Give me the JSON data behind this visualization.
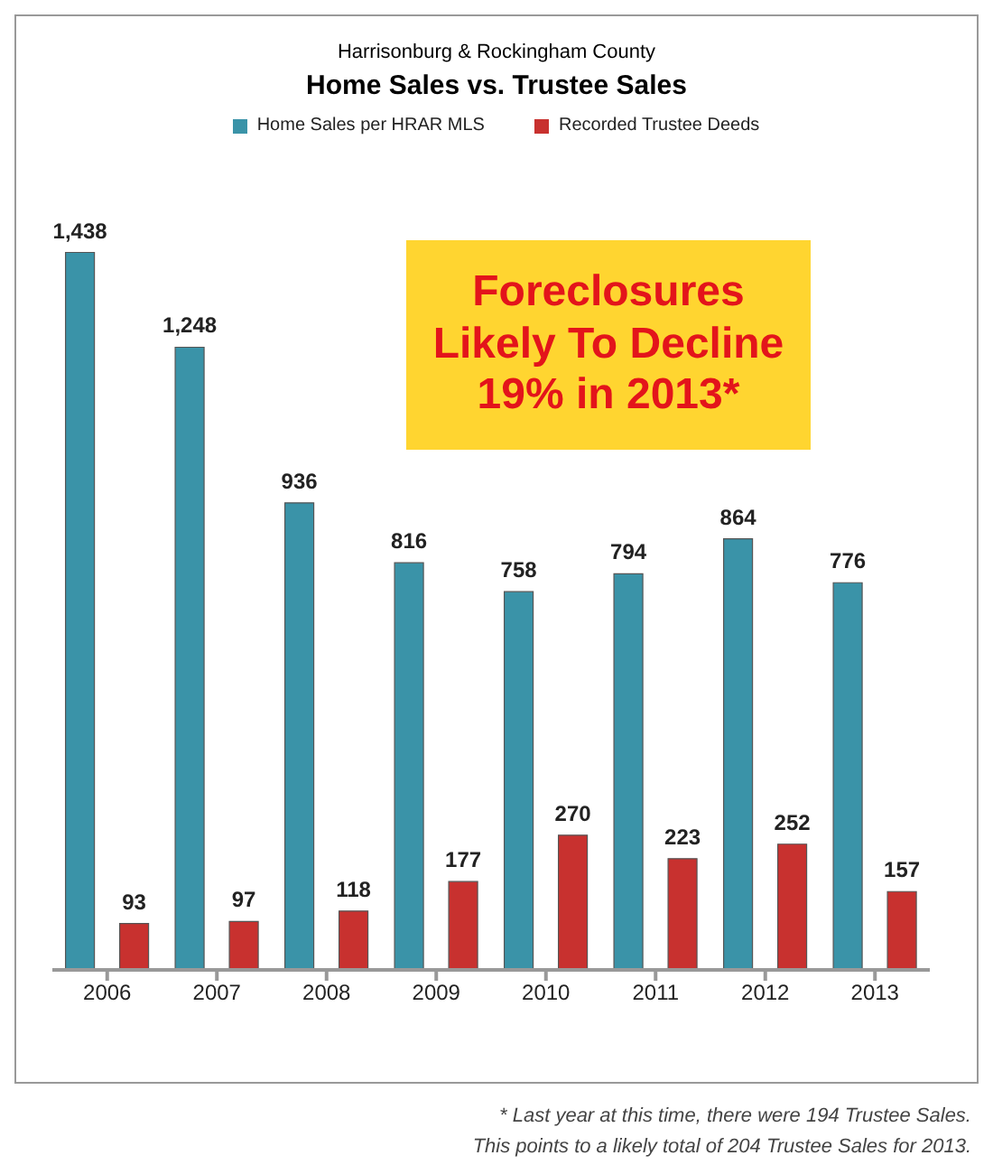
{
  "chart_data": {
    "type": "bar",
    "subtitle": "Harrisonburg & Rockingham County",
    "title": "Home Sales vs. Trustee Sales",
    "categories": [
      "2006",
      "2007",
      "2008",
      "2009",
      "2010",
      "2011",
      "2012",
      "2013"
    ],
    "series": [
      {
        "name": "Home Sales per HRAR MLS",
        "color": "#3a93a8",
        "values": [
          1438,
          1248,
          936,
          816,
          758,
          794,
          864,
          776
        ],
        "value_labels": [
          "1,438",
          "1,248",
          "936",
          "816",
          "758",
          "794",
          "864",
          "776"
        ]
      },
      {
        "name": "Recorded Trustee Deeds",
        "color": "#c8312f",
        "values": [
          93,
          97,
          118,
          177,
          270,
          223,
          252,
          157
        ],
        "value_labels": [
          "93",
          "97",
          "118",
          "177",
          "270",
          "223",
          "252",
          "157"
        ]
      }
    ],
    "legend": "top",
    "grid": false,
    "annotations": [
      "Foreclosures\nLikely To Decline\n19% in 2013*",
      "* Last year at this time, there were 194 Trustee Sales.\nThis points to a likely total of 204 Trustee Sales for 2013."
    ]
  }
}
